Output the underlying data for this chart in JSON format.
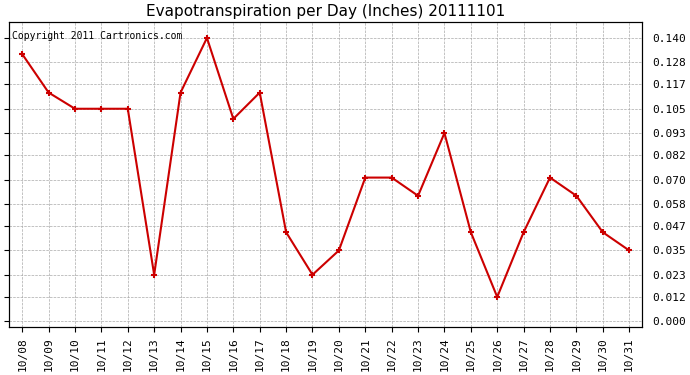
{
  "title": "Evapotranspiration per Day (Inches) 20111101",
  "copyright_text": "Copyright 2011 Cartronics.com",
  "x_labels": [
    "10/08",
    "10/09",
    "10/10",
    "10/11",
    "10/12",
    "10/13",
    "10/14",
    "10/15",
    "10/16",
    "10/17",
    "10/18",
    "10/19",
    "10/20",
    "10/21",
    "10/22",
    "10/23",
    "10/24",
    "10/25",
    "10/26",
    "10/27",
    "10/28",
    "10/29",
    "10/30",
    "10/31"
  ],
  "y_values": [
    0.132,
    0.113,
    0.105,
    0.105,
    0.105,
    0.023,
    0.113,
    0.14,
    0.1,
    0.113,
    0.044,
    0.023,
    0.035,
    0.071,
    0.071,
    0.062,
    0.093,
    0.044,
    0.012,
    0.044,
    0.071,
    0.062,
    0.044,
    0.035
  ],
  "line_color": "#cc0000",
  "marker_color": "#cc0000",
  "marker_style": "+",
  "marker_size": 5,
  "line_width": 1.5,
  "y_ticks": [
    0.0,
    0.012,
    0.023,
    0.035,
    0.047,
    0.058,
    0.07,
    0.082,
    0.093,
    0.105,
    0.117,
    0.128,
    0.14
  ],
  "ylim": [
    -0.003,
    0.148
  ],
  "background_color": "#ffffff",
  "plot_bg_color": "#ffffff",
  "grid_color": "#aaaaaa",
  "title_fontsize": 11,
  "copyright_fontsize": 7,
  "tick_fontsize": 8
}
